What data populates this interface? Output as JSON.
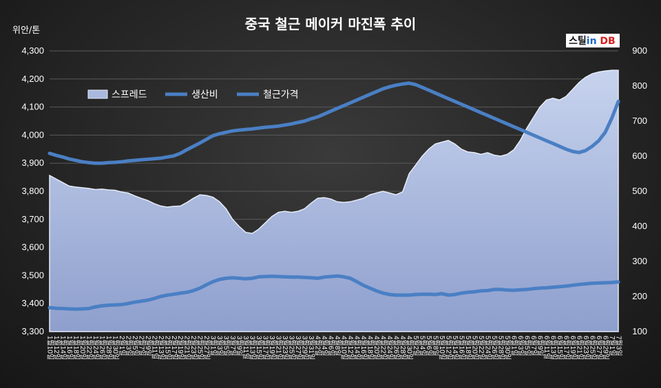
{
  "chart_data": {
    "type": "line",
    "title": "중국 철근 메이커 마진폭 추이",
    "unit_label": "위안/톤",
    "logo": {
      "part1": "스틸",
      "part2": "in",
      "part3": " DB"
    },
    "y_left": {
      "min": 3300,
      "max": 4300,
      "ticks": [
        "3,300",
        "3,400",
        "3,500",
        "3,600",
        "3,700",
        "3,800",
        "3,900",
        "4,000",
        "4,100",
        "4,200",
        "4,300"
      ]
    },
    "y_right": {
      "min": 100,
      "max": 900,
      "ticks": [
        "100",
        "200",
        "300",
        "400",
        "500",
        "600",
        "700",
        "800",
        "900"
      ]
    },
    "legend_position": "top-left",
    "x_labels": [
      "1월10일",
      "1월12일",
      "1월14일",
      "1월16일",
      "1월18일",
      "1월20일",
      "1월22일",
      "1월24일",
      "1월26일",
      "1월28일",
      "1월30일",
      "2월1일",
      "2월3일",
      "2월5일",
      "2월7일",
      "2월9일",
      "2월11일",
      "2월13일",
      "2월15일",
      "2월17일",
      "2월19일",
      "2월21일",
      "2월23일",
      "2월25일",
      "2월27일",
      "3월1일",
      "3월3일",
      "3월5일",
      "3월7일",
      "3월9일",
      "3월11일",
      "3월13일",
      "3월15일",
      "3월17일",
      "3월19일",
      "3월21일",
      "3월23일",
      "3월25일",
      "3월27일",
      "3월29일",
      "3월31일",
      "4월2일",
      "4월4일",
      "4월6일",
      "4월8일",
      "4월10일",
      "4월12일",
      "4월14일",
      "4월16일",
      "4월18일",
      "4월20일",
      "4월22일",
      "4월24일",
      "4월26일",
      "4월28일",
      "4월30일",
      "5월2일",
      "5월4일",
      "5월6일",
      "5월8일",
      "5월10일",
      "5월12일",
      "5월14일",
      "5월16일",
      "5월18일",
      "5월20일",
      "5월22일",
      "5월24일",
      "5월26일",
      "5월28일",
      "5월30일",
      "6월1일",
      "6월3일",
      "6월5일",
      "6월7일",
      "6월9일",
      "6월11일",
      "6월13일",
      "6월15일",
      "6월17일",
      "6월19일",
      "6월21일",
      "6월23일",
      "6월25일",
      "6월27일",
      "6월29일",
      "7월1일",
      "7월3일"
    ],
    "series": [
      {
        "name": "스프레드",
        "axis": "right",
        "kind": "area",
        "values": [
          545,
          535,
          525,
          515,
          512,
          510,
          508,
          505,
          506,
          504,
          503,
          498,
          495,
          487,
          480,
          474,
          465,
          458,
          455,
          457,
          458,
          468,
          480,
          490,
          488,
          483,
          470,
          450,
          420,
          400,
          383,
          380,
          392,
          410,
          428,
          440,
          443,
          440,
          443,
          450,
          466,
          480,
          482,
          478,
          470,
          468,
          470,
          475,
          480,
          490,
          495,
          500,
          495,
          490,
          498,
          550,
          575,
          600,
          620,
          635,
          640,
          645,
          635,
          620,
          612,
          610,
          605,
          610,
          603,
          600,
          605,
          618,
          645,
          680,
          710,
          740,
          760,
          765,
          760,
          770,
          790,
          810,
          825,
          835,
          840,
          843,
          845,
          845
        ],
        "color": "#a9b8dd"
      },
      {
        "name": "생산비",
        "axis": "left",
        "kind": "line",
        "values": [
          3385,
          3383,
          3382,
          3381,
          3380,
          3381,
          3382,
          3388,
          3392,
          3394,
          3395,
          3396,
          3400,
          3405,
          3408,
          3412,
          3418,
          3425,
          3430,
          3433,
          3437,
          3440,
          3446,
          3455,
          3467,
          3478,
          3486,
          3490,
          3492,
          3490,
          3488,
          3490,
          3495,
          3496,
          3497,
          3496,
          3495,
          3494,
          3494,
          3493,
          3492,
          3490,
          3494,
          3496,
          3498,
          3495,
          3490,
          3478,
          3465,
          3455,
          3445,
          3437,
          3432,
          3430,
          3430,
          3430,
          3432,
          3433,
          3433,
          3432,
          3435,
          3430,
          3432,
          3437,
          3440,
          3442,
          3445,
          3446,
          3450,
          3450,
          3448,
          3447,
          3449,
          3450,
          3453,
          3455,
          3456,
          3458,
          3460,
          3462,
          3465,
          3468,
          3470,
          3472,
          3473,
          3474,
          3475,
          3477
        ],
        "color": "#4a7fc4"
      },
      {
        "name": "철근가격",
        "axis": "left",
        "kind": "line",
        "values": [
          3935,
          3928,
          3922,
          3915,
          3910,
          3905,
          3902,
          3900,
          3900,
          3902,
          3903,
          3905,
          3908,
          3910,
          3912,
          3914,
          3916,
          3918,
          3922,
          3926,
          3935,
          3948,
          3960,
          3972,
          3985,
          3998,
          4005,
          4010,
          4015,
          4018,
          4020,
          4022,
          4025,
          4028,
          4030,
          4032,
          4036,
          4040,
          4045,
          4050,
          4058,
          4065,
          4075,
          4085,
          4095,
          4105,
          4115,
          4125,
          4135,
          4145,
          4155,
          4165,
          4172,
          4178,
          4182,
          4185,
          4180,
          4170,
          4160,
          4150,
          4140,
          4130,
          4120,
          4110,
          4100,
          4090,
          4080,
          4070,
          4060,
          4050,
          4040,
          4030,
          4020,
          4010,
          4000,
          3990,
          3980,
          3970,
          3960,
          3950,
          3942,
          3938,
          3945,
          3960,
          3980,
          4010,
          4060,
          4120
        ],
        "color": "#4a7fc4"
      }
    ]
  }
}
